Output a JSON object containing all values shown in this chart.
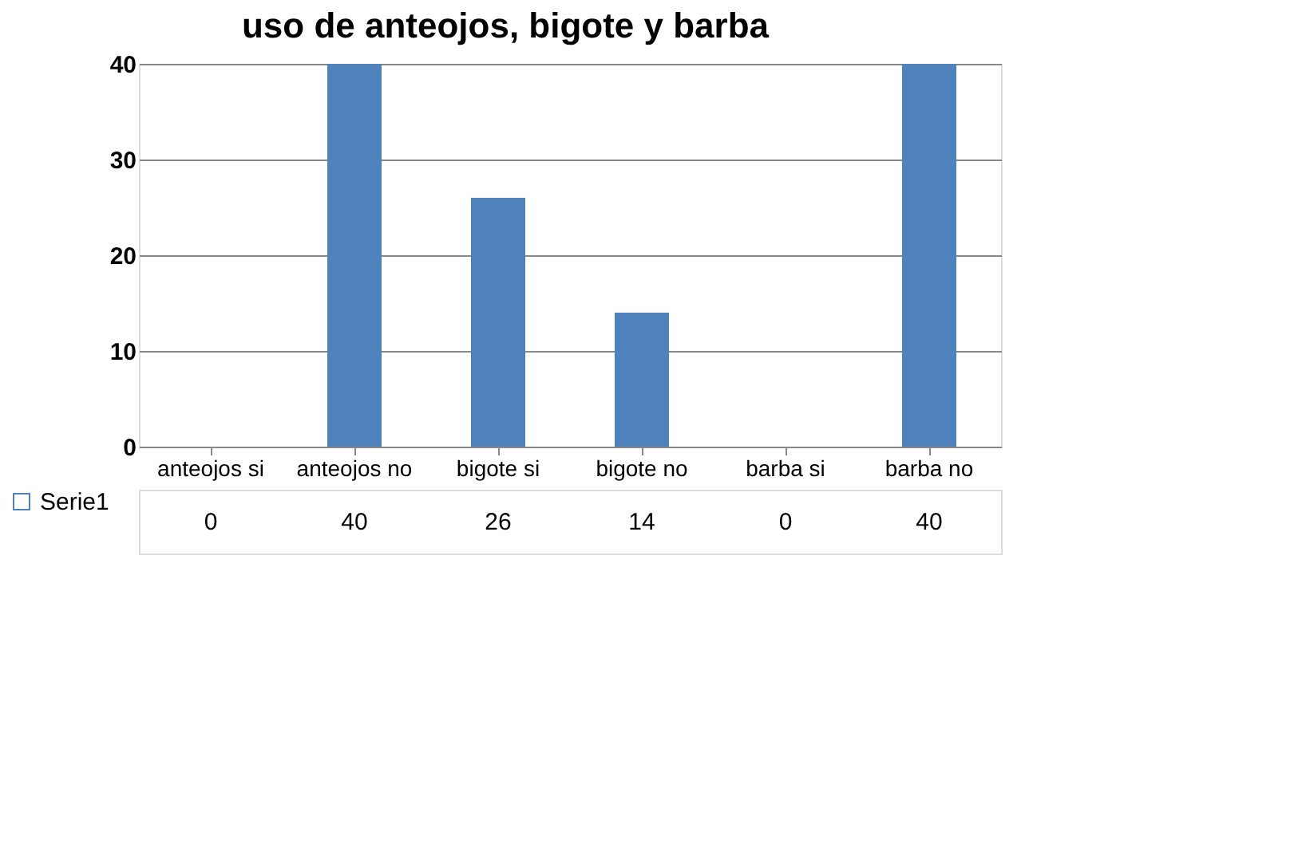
{
  "chart_data": {
    "type": "bar",
    "title": "uso de anteojos, bigote y barba",
    "categories": [
      "anteojos si",
      "anteojos no",
      "bigote si",
      "bigote no",
      "barba si",
      "barba no"
    ],
    "series": [
      {
        "name": "Serie1",
        "color": "#4f81bd",
        "values": [
          0,
          40,
          26,
          14,
          0,
          40
        ]
      }
    ],
    "ylim": [
      0,
      40
    ],
    "yticks": [
      0,
      10,
      20,
      30,
      40
    ],
    "grid": "y",
    "data_labels": true,
    "legend": "bottom left"
  }
}
